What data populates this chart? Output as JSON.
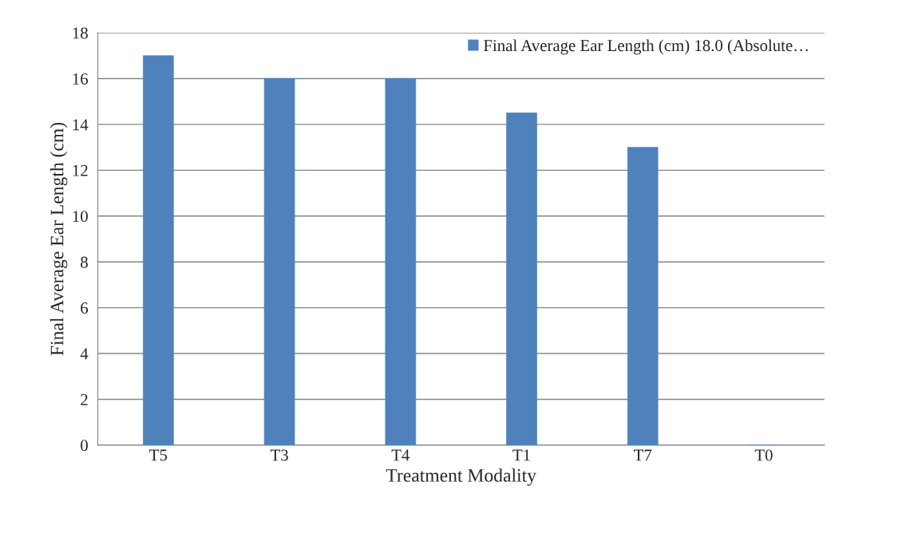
{
  "chart_data": {
    "type": "bar",
    "xlabel": "Treatment Modality",
    "ylabel": "Final Average Ear Length (cm)",
    "categories": [
      "T5",
      "T3",
      "T4",
      "T1",
      "T7",
      "T0"
    ],
    "series": [
      {
        "name": "Final Average Ear Length (cm) 18.0 (Absolute…",
        "color": "#4f81bd",
        "values": [
          17,
          16,
          16,
          14.5,
          13,
          0
        ]
      }
    ],
    "ylim": [
      0,
      18
    ],
    "yticks": [
      0,
      2,
      4,
      6,
      8,
      10,
      12,
      14,
      16,
      18
    ],
    "grid": "y",
    "legend": "top right"
  }
}
